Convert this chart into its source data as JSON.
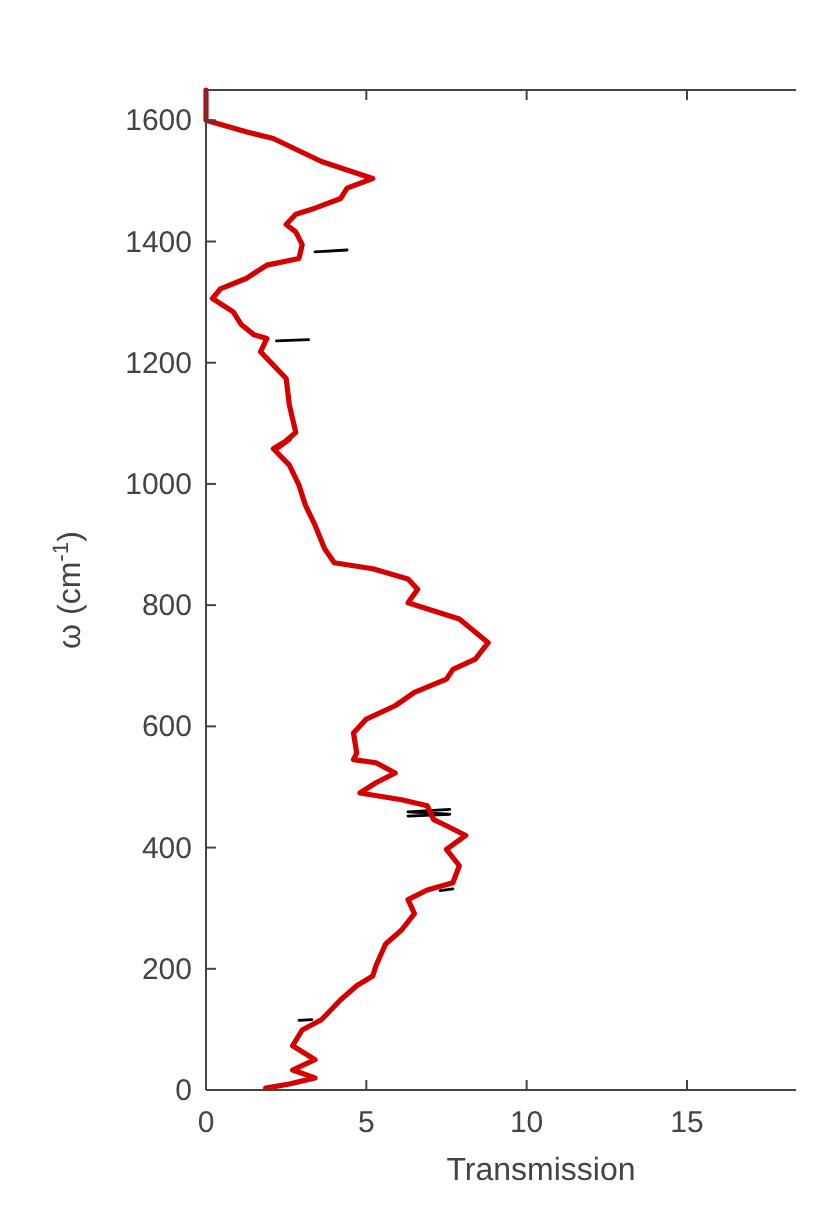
{
  "chart_data": {
    "type": "line",
    "xlabel": "Transmission",
    "ylabel": "ω (cm$^{-1}$)",
    "xlim": [
      0,
      18.4
    ],
    "xticks": [
      0,
      5,
      10,
      15
    ],
    "ylim": [
      0,
      1650
    ],
    "yticks": [
      0,
      200,
      400,
      600,
      800,
      1000,
      1200,
      1400,
      1600
    ],
    "grid": false,
    "line_style": "solid",
    "series": [
      {
        "color": "#000000",
        "x": [
          2.9,
          3.3,
          null,
          7.3,
          7.7,
          null,
          6.3,
          7.6,
          6.3,
          7.6,
          null,
          2.2,
          3.2,
          null,
          3.4,
          4.4
        ],
        "values": [
          115,
          116,
          null,
          329,
          332,
          null,
          452,
          455,
          459,
          463,
          null,
          1236,
          1238,
          null,
          1383,
          1386
        ]
      },
      {
        "color": "#d40000",
        "x": [
          1.86,
          2.6,
          3.4,
          2.7,
          3.4,
          2.7,
          3.0,
          3.6,
          4.2,
          4.7,
          5.2,
          5.3,
          5.6,
          6.1,
          6.5,
          6.3,
          6.9,
          7.7,
          7.9,
          7.5,
          8.1,
          7.5,
          7.1,
          6.9,
          6.1,
          4.8,
          5.3,
          5.9,
          5.3,
          4.6,
          4.7,
          4.6,
          5.0,
          5.9,
          6.5,
          7.5,
          7.7,
          8.4,
          8.8,
          7.9,
          6.3,
          6.6,
          6.3,
          5.2,
          4.0,
          3.7,
          3.4,
          3.1,
          2.9,
          2.6,
          2.1,
          2.6,
          2.2,
          2.8,
          2.6,
          2.5,
          2.1,
          1.7,
          1.9,
          1.5,
          1.1,
          0.85,
          0.2,
          0.45,
          1.25,
          1.9,
          2.9,
          3.0,
          2.8,
          2.5,
          2.8,
          3.4,
          4.2,
          4.4,
          5.2,
          3.6,
          2.1,
          1.25,
          0,
          0
        ],
        "values": [
          3,
          10,
          20,
          33,
          50,
          73,
          99,
          116,
          149,
          172,
          188,
          205,
          241,
          264,
          291,
          314,
          330,
          342,
          370,
          397,
          420,
          436,
          446,
          469,
          479,
          490,
          507,
          523,
          540,
          545,
          556,
          589,
          612,
          634,
          656,
          678,
          694,
          711,
          738,
          777,
          804,
          826,
          843,
          860,
          870,
          893,
          932,
          965,
          998,
          1031,
          1058,
          1074,
          1058,
          1085,
          1130,
          1174,
          1196,
          1218,
          1240,
          1246,
          1263,
          1284,
          1306,
          1322,
          1339,
          1361,
          1372,
          1395,
          1416,
          1428,
          1445,
          1455,
          1471,
          1488,
          1504,
          1532,
          1570,
          1581,
          1600,
          1650
        ]
      }
    ]
  }
}
